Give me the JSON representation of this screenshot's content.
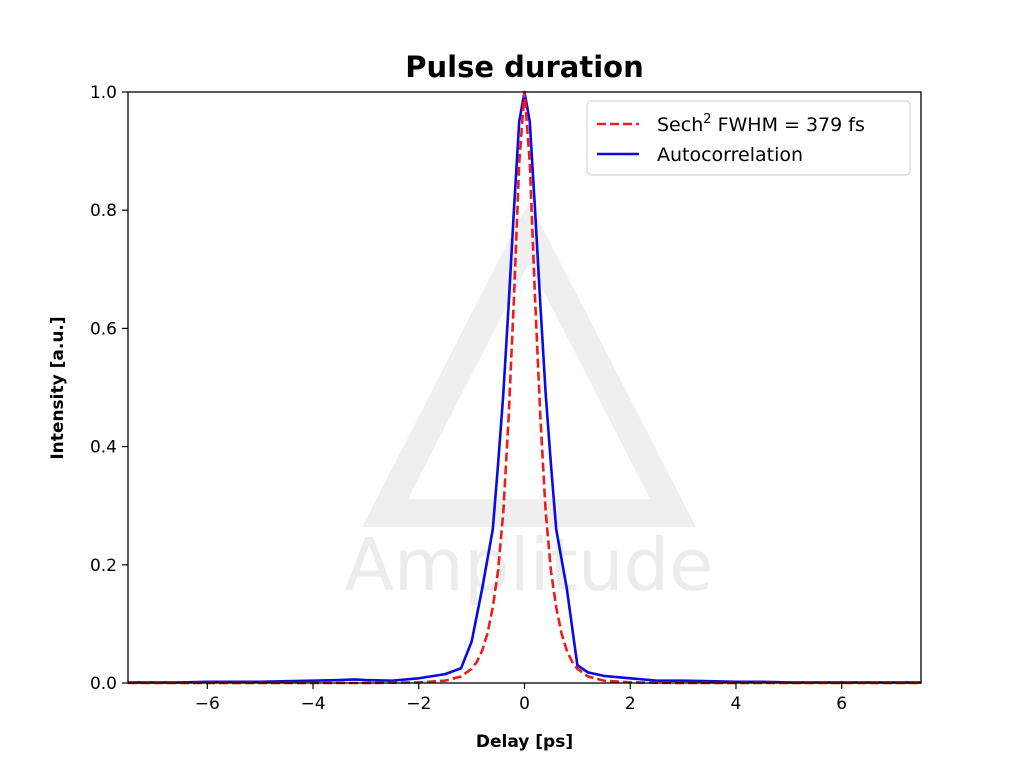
{
  "chart_data": {
    "type": "line",
    "title": "Pulse duration",
    "xlabel": "Delay [ps]",
    "ylabel": "Intensity [a.u.]",
    "xlim": [
      -7.5,
      7.5
    ],
    "ylim": [
      0,
      1.0
    ],
    "xticks": [
      -6,
      -4,
      -2,
      0,
      2,
      4,
      6
    ],
    "xtick_labels": [
      "−6",
      "−4",
      "−2",
      "0",
      "2",
      "4",
      "6"
    ],
    "yticks": [
      0.0,
      0.2,
      0.4,
      0.6,
      0.8,
      1.0
    ],
    "ytick_labels": [
      "0.0",
      "0.2",
      "0.4",
      "0.6",
      "0.8",
      "1.0"
    ],
    "grid": false,
    "legend_position": "top-right",
    "watermark": "Amplitude",
    "series": [
      {
        "name": "Sech",
        "name_superscript": "2",
        "name_suffix": " FWHM = 379 fs",
        "style": "dashed",
        "color": "#ee1c1c",
        "x": [
          -7.5,
          -3.0,
          -2.0,
          -1.5,
          -1.2,
          -1.0,
          -0.9,
          -0.8,
          -0.7,
          -0.6,
          -0.5,
          -0.4,
          -0.3,
          -0.2,
          -0.1,
          0.0,
          0.1,
          0.2,
          0.3,
          0.4,
          0.5,
          0.6,
          0.7,
          0.8,
          0.9,
          1.0,
          1.2,
          1.5,
          2.0,
          3.0,
          7.5
        ],
        "y": [
          0.0,
          0.0,
          0.001,
          0.004,
          0.011,
          0.024,
          0.036,
          0.055,
          0.084,
          0.128,
          0.19,
          0.29,
          0.45,
          0.65,
          0.88,
          1.0,
          0.88,
          0.65,
          0.45,
          0.29,
          0.19,
          0.128,
          0.084,
          0.055,
          0.036,
          0.024,
          0.011,
          0.004,
          0.001,
          0.0,
          0.0
        ]
      },
      {
        "name": "Autocorrelation",
        "style": "solid",
        "color": "#0a0ae6",
        "x": [
          -7.5,
          -6.5,
          -6.0,
          -5.0,
          -4.5,
          -4.0,
          -3.5,
          -3.2,
          -3.0,
          -2.5,
          -2.0,
          -1.5,
          -1.2,
          -1.0,
          -0.8,
          -0.6,
          -0.5,
          -0.4,
          -0.3,
          -0.2,
          -0.1,
          0.0,
          0.1,
          0.2,
          0.3,
          0.4,
          0.5,
          0.6,
          0.8,
          1.0,
          1.2,
          1.5,
          2.0,
          2.5,
          3.0,
          3.5,
          4.0,
          4.5,
          5.0,
          6.0,
          7.5
        ],
        "y": [
          0.001,
          0.001,
          0.002,
          0.002,
          0.003,
          0.004,
          0.005,
          0.006,
          0.005,
          0.004,
          0.008,
          0.015,
          0.025,
          0.07,
          0.16,
          0.26,
          0.37,
          0.49,
          0.64,
          0.8,
          0.95,
          1.0,
          0.95,
          0.8,
          0.64,
          0.49,
          0.37,
          0.26,
          0.16,
          0.03,
          0.018,
          0.012,
          0.008,
          0.004,
          0.004,
          0.003,
          0.002,
          0.002,
          0.001,
          0.001,
          0.001
        ]
      }
    ]
  }
}
